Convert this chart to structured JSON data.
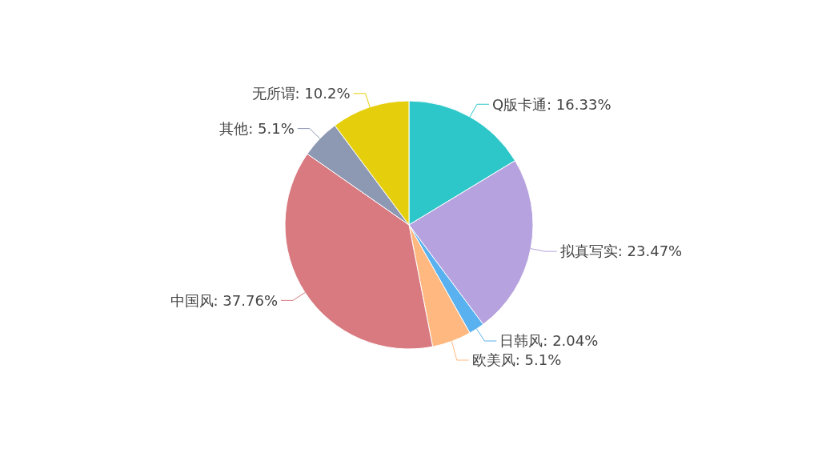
{
  "chart_data": {
    "type": "pie",
    "categories": [
      "Q版卡通",
      "拟真写实",
      "日韩风",
      "欧美风",
      "中国风",
      "其他",
      "无所谓"
    ],
    "values": [
      16.33,
      23.47,
      2.04,
      5.1,
      37.76,
      5.1,
      10.2
    ],
    "value_labels": [
      "16.33%",
      "23.47%",
      "2.04%",
      "5.1%",
      "37.76%",
      "5.1%",
      "10.2%"
    ],
    "colors": [
      "#2ec7c9",
      "#b6a2de",
      "#5ab1ef",
      "#ffb980",
      "#d87a80",
      "#8d98b3",
      "#e5cf0d"
    ],
    "data_labels": true
  }
}
